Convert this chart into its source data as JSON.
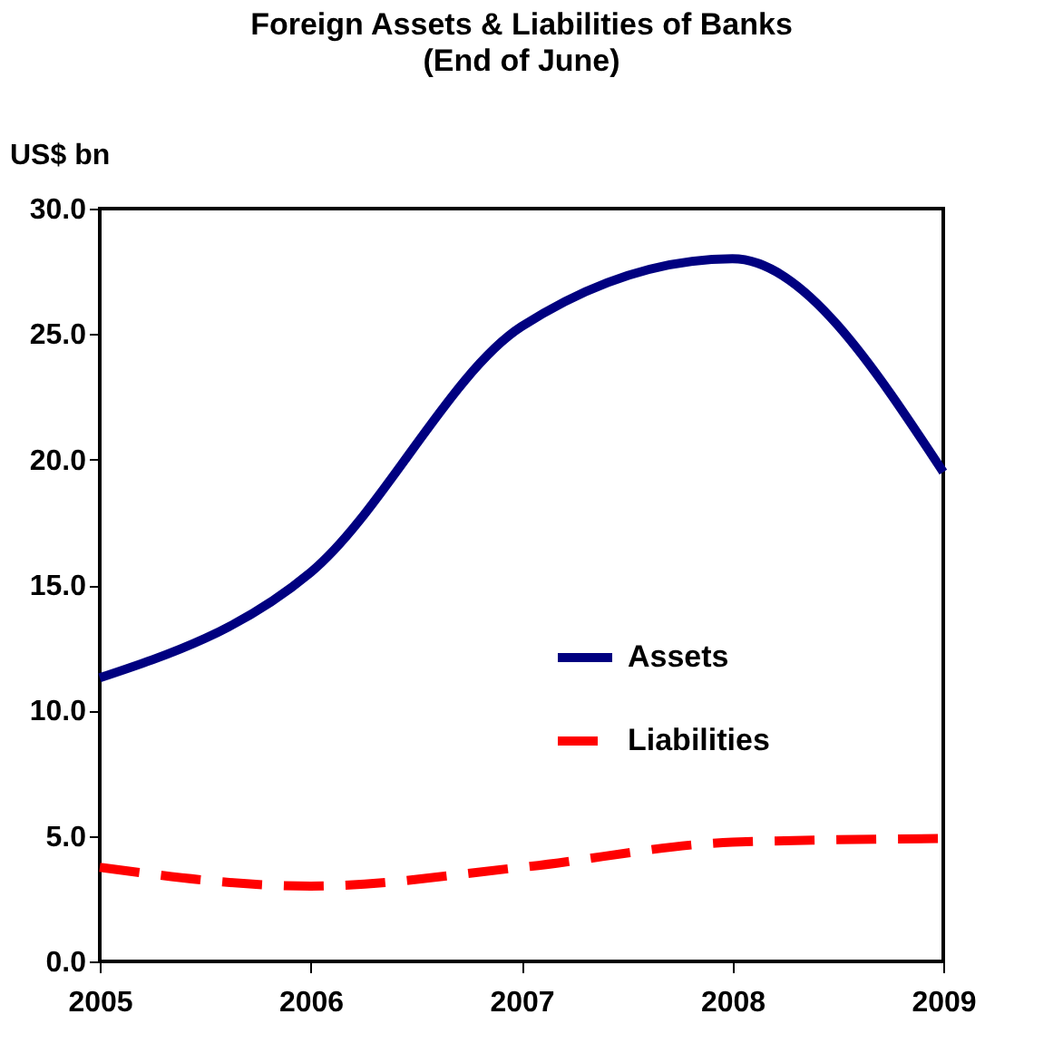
{
  "chart_data": {
    "type": "line",
    "title": "Foreign Assets & Liabilities of Banks",
    "subtitle": "(End of June)",
    "ylabel": "US$ bn",
    "x": [
      2005,
      2006,
      2007,
      2008,
      2009
    ],
    "series": [
      {
        "name": "Assets",
        "color": "#000080",
        "line_style": "solid",
        "values": [
          11.3,
          15.5,
          25.3,
          28.0,
          19.5
        ]
      },
      {
        "name": "Liabilities",
        "color": "#ff0000",
        "line_style": "dashed",
        "values": [
          3.75,
          3.0,
          3.75,
          4.75,
          4.9
        ]
      }
    ],
    "xlim": [
      2005,
      2009
    ],
    "xticks": [
      2005,
      2006,
      2007,
      2008,
      2009
    ],
    "ylim": [
      0,
      30
    ],
    "yticks": [
      {
        "value": 0,
        "label": "0.0"
      },
      {
        "value": 5,
        "label": "5.0"
      },
      {
        "value": 10,
        "label": "10.0"
      },
      {
        "value": 15,
        "label": "15.0"
      },
      {
        "value": 20,
        "label": "20.0"
      },
      {
        "value": 25,
        "label": "25.0"
      },
      {
        "value": 30,
        "label": "30.0"
      }
    ],
    "grid": false,
    "legend": "right",
    "marker": "none"
  }
}
